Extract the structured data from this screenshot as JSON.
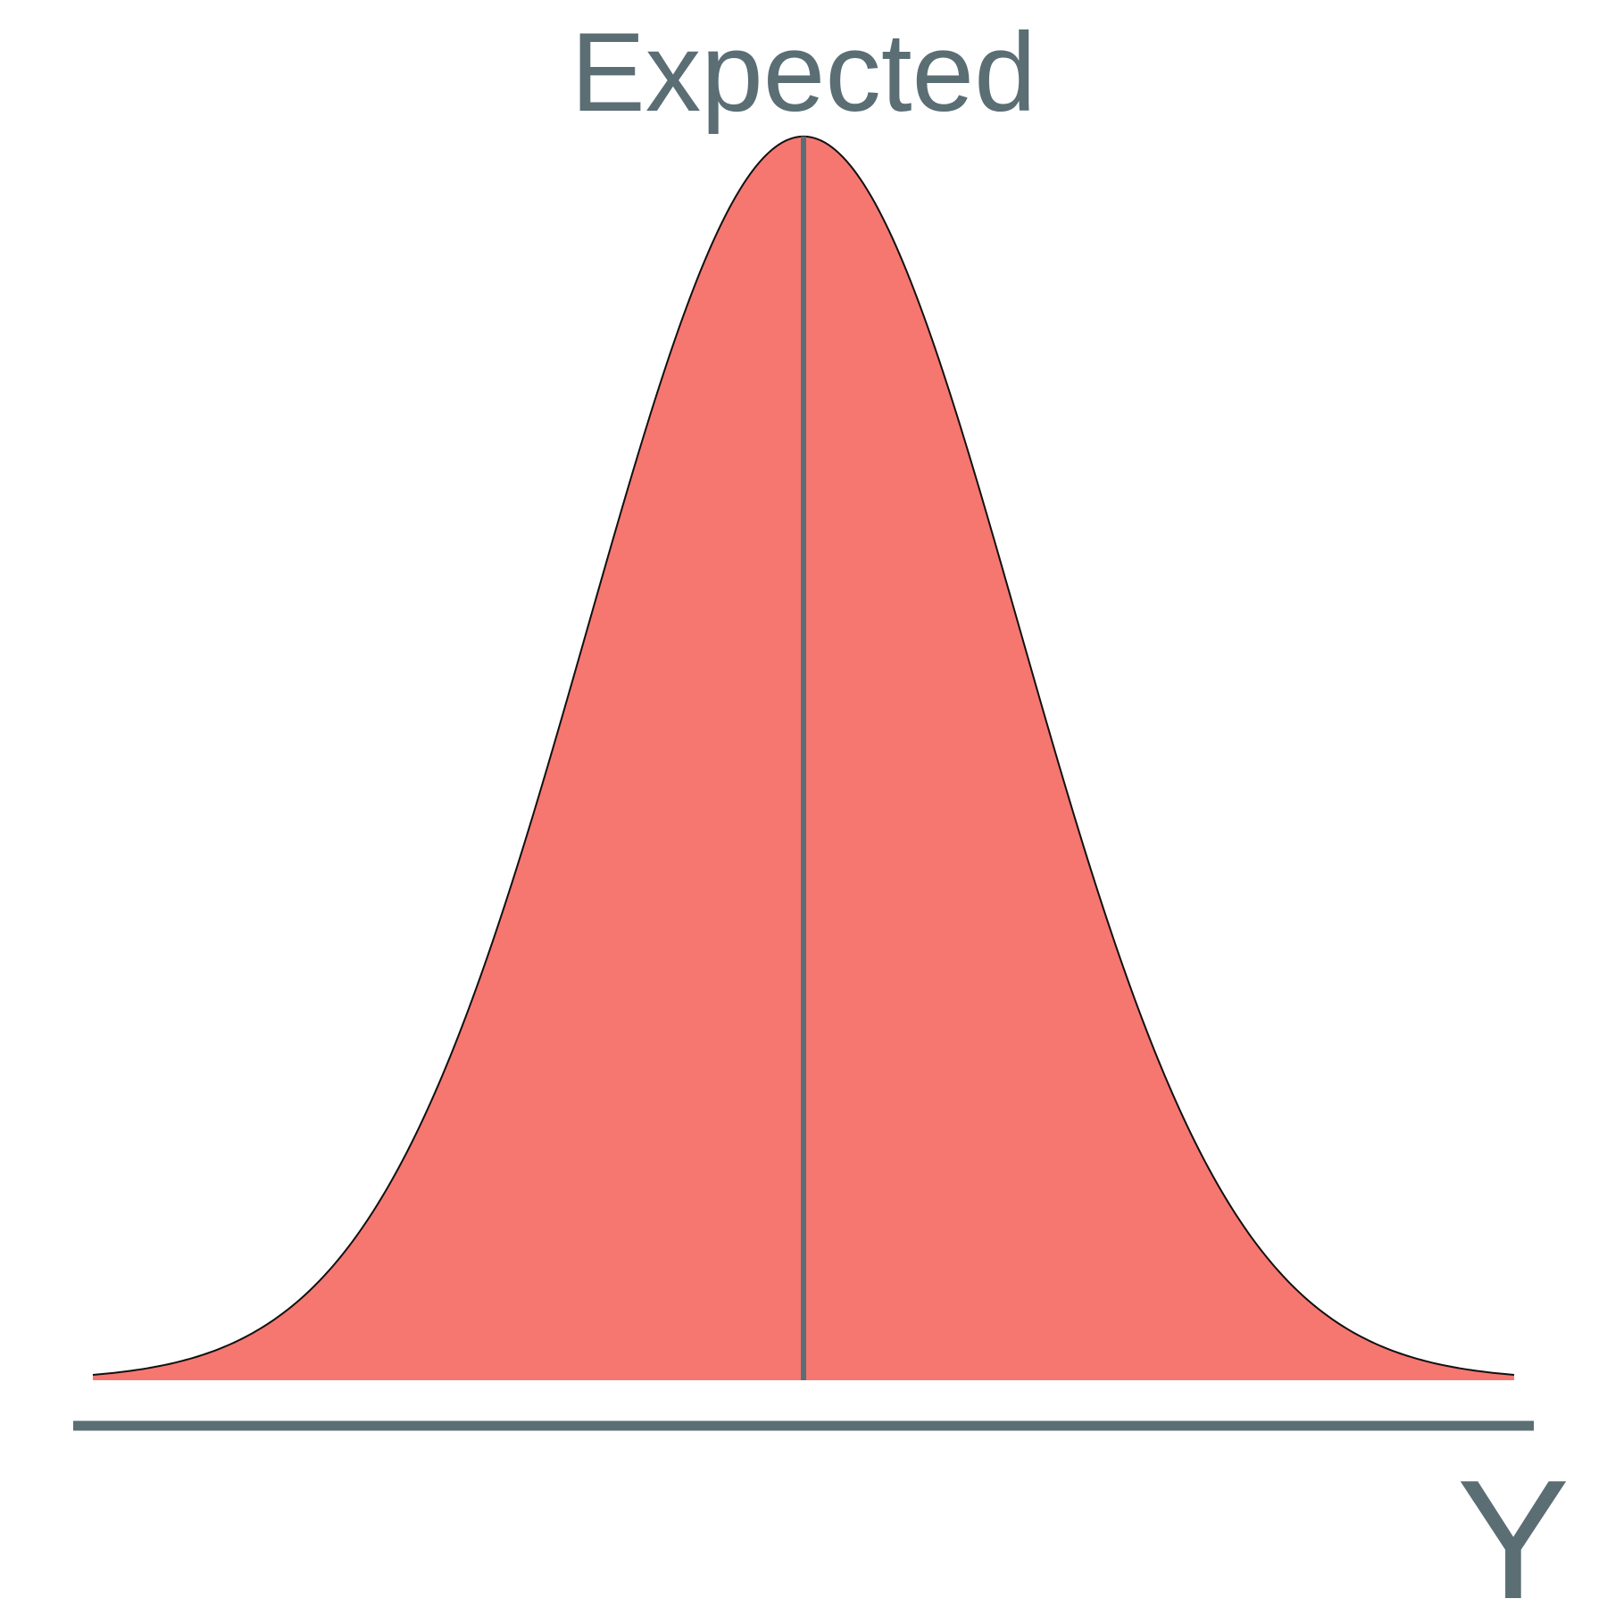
{
  "chart_data": {
    "type": "area",
    "title": "",
    "xlabel": "Y",
    "ylabel": "",
    "distribution": "normal",
    "mean": 0,
    "sd": 1,
    "xlim": [
      -3.3,
      3.3
    ],
    "ylim": [
      0,
      0.3989
    ],
    "grid": false,
    "legend": "none",
    "annotations": [
      {
        "label": "Expected",
        "x": 0
      }
    ],
    "colors": {
      "fill": "#f67770",
      "curve": "#111111",
      "reference_line": "#5a6e74",
      "axis": "#5a6e74",
      "text": "#5a6e74"
    }
  }
}
